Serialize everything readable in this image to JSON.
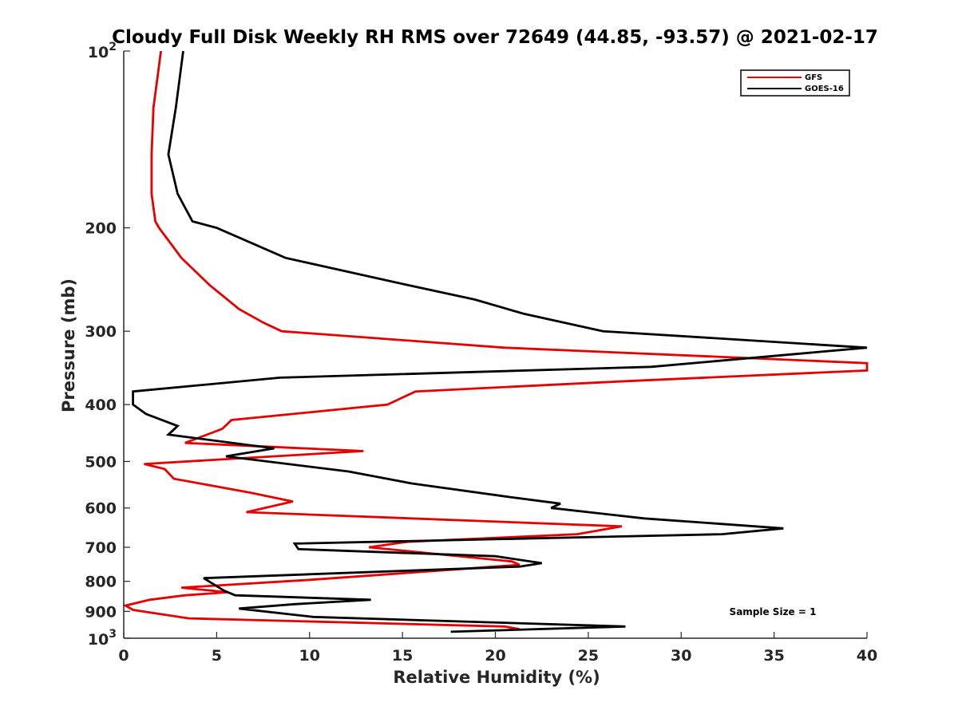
{
  "chart_data": {
    "type": "line",
    "title": "Cloudy Full Disk Weekly RH RMS over 72649 (44.85, -93.57) @ 2021-02-17",
    "xlabel": "Relative Humidity (%)",
    "ylabel": "Pressure (mb)",
    "xlim": [
      0,
      40
    ],
    "ylim": [
      100,
      1000
    ],
    "yscale": "log",
    "y_reversed": true,
    "grid": false,
    "legend_position": "top-right",
    "x_ticks": [
      "0",
      "5",
      "10",
      "15",
      "20",
      "25",
      "30",
      "35",
      "40"
    ],
    "y_ticks": [
      {
        "value": 100,
        "base": "10",
        "exp": "2"
      },
      {
        "value": 200,
        "label": "200"
      },
      {
        "value": 300,
        "label": "300"
      },
      {
        "value": 400,
        "label": "400"
      },
      {
        "value": 500,
        "label": "500"
      },
      {
        "value": 600,
        "label": "600"
      },
      {
        "value": 700,
        "label": "700"
      },
      {
        "value": 800,
        "label": "800"
      },
      {
        "value": 900,
        "label": "900"
      },
      {
        "value": 1000,
        "base": "10",
        "exp": "3"
      }
    ],
    "series": [
      {
        "name": "GFS",
        "color": "#e60000",
        "points": [
          [
            2.0,
            100
          ],
          [
            1.6,
            125
          ],
          [
            1.5,
            150
          ],
          [
            1.5,
            175
          ],
          [
            1.7,
            195
          ],
          [
            1.9,
            200
          ],
          [
            3.1,
            225
          ],
          [
            4.6,
            250
          ],
          [
            6.2,
            275
          ],
          [
            7.5,
            290
          ],
          [
            8.5,
            300
          ],
          [
            20.5,
            320
          ],
          [
            40,
            340
          ],
          [
            40,
            350
          ],
          [
            27,
            365
          ],
          [
            15.7,
            380
          ],
          [
            14.2,
            400
          ],
          [
            5.8,
            425
          ],
          [
            5.3,
            440
          ],
          [
            3.3,
            465
          ],
          [
            12.9,
            480
          ],
          [
            1.1,
            505
          ],
          [
            2.2,
            515
          ],
          [
            2.7,
            535
          ],
          [
            6.8,
            565
          ],
          [
            9.1,
            585
          ],
          [
            6.6,
            610
          ],
          [
            26.8,
            645
          ],
          [
            24.4,
            665
          ],
          [
            15.3,
            685
          ],
          [
            13.2,
            700
          ],
          [
            20.9,
            740
          ],
          [
            21.3,
            750
          ],
          [
            10.1,
            795
          ],
          [
            3.1,
            820
          ],
          [
            5.6,
            835
          ],
          [
            3.3,
            845
          ],
          [
            1.4,
            860
          ],
          [
            0.1,
            880
          ],
          [
            0.5,
            895
          ],
          [
            3.5,
            925
          ],
          [
            20.5,
            955
          ],
          [
            21.3,
            965
          ]
        ]
      },
      {
        "name": "GOES-16",
        "color": "#000000",
        "points": [
          [
            3.2,
            100
          ],
          [
            2.8,
            125
          ],
          [
            2.4,
            150
          ],
          [
            2.9,
            175
          ],
          [
            3.7,
            195
          ],
          [
            5.0,
            200
          ],
          [
            8.7,
            225
          ],
          [
            15.2,
            250
          ],
          [
            18.9,
            265
          ],
          [
            21.5,
            280
          ],
          [
            25.8,
            300
          ],
          [
            40,
            320
          ],
          [
            28.4,
            345
          ],
          [
            8.4,
            360
          ],
          [
            0.5,
            380
          ],
          [
            0.5,
            400
          ],
          [
            1.2,
            415
          ],
          [
            2.9,
            435
          ],
          [
            2.4,
            450
          ],
          [
            8.1,
            475
          ],
          [
            5.5,
            490
          ],
          [
            12.1,
            520
          ],
          [
            15.5,
            545
          ],
          [
            20.8,
            575
          ],
          [
            23.5,
            590
          ],
          [
            23.0,
            600
          ],
          [
            28.0,
            625
          ],
          [
            35.5,
            650
          ],
          [
            32.2,
            665
          ],
          [
            9.2,
            690
          ],
          [
            9.4,
            705
          ],
          [
            20.0,
            725
          ],
          [
            22.5,
            745
          ],
          [
            21.3,
            755
          ],
          [
            4.3,
            790
          ],
          [
            5.4,
            830
          ],
          [
            6.0,
            845
          ],
          [
            13.3,
            860
          ],
          [
            9.2,
            875
          ],
          [
            6.2,
            890
          ],
          [
            10.2,
            920
          ],
          [
            27.0,
            955
          ],
          [
            17.6,
            975
          ]
        ]
      }
    ],
    "annotation": "Sample Size = 1"
  }
}
